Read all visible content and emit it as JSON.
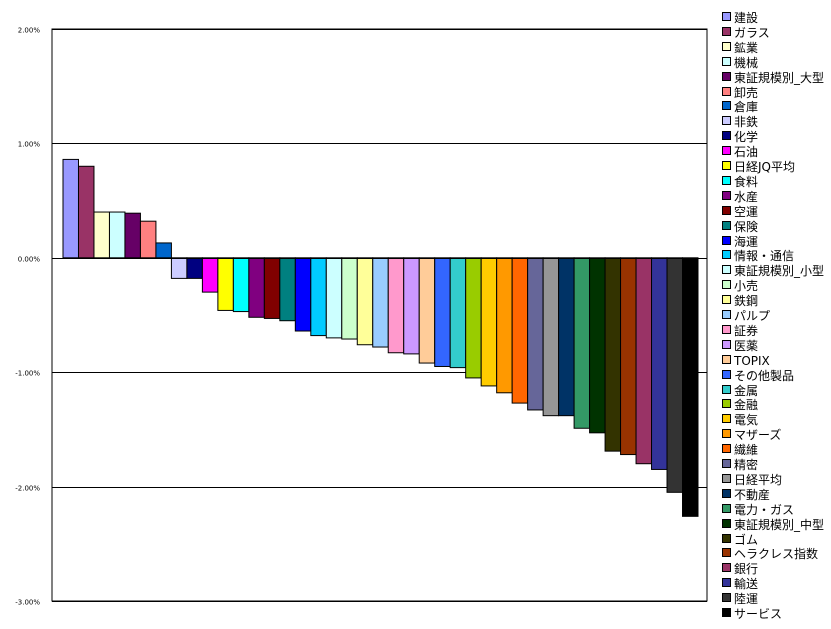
{
  "chart_data": {
    "type": "bar",
    "title": "",
    "xlabel": "",
    "ylabel": "",
    "ylim": [
      -3,
      2
    ],
    "yticks": [
      2,
      1,
      0,
      -1,
      -2,
      -3
    ],
    "ytick_labels": [
      "2.00%",
      "1.00%",
      "0.00%",
      "-1.00%",
      "-2.00%",
      "-3.00%"
    ],
    "grid": true,
    "legend_position": "right",
    "series": [
      {
        "name": "建設",
        "value": 0.86,
        "color": "#9999ff"
      },
      {
        "name": "ガラス",
        "value": 0.8,
        "color": "#993366"
      },
      {
        "name": "鉱業",
        "value": 0.4,
        "color": "#ffffcc"
      },
      {
        "name": "機械",
        "value": 0.4,
        "color": "#ccffff"
      },
      {
        "name": "東証規模別_大型",
        "value": 0.39,
        "color": "#660066"
      },
      {
        "name": "卸売",
        "value": 0.32,
        "color": "#ff8080"
      },
      {
        "name": "倉庫",
        "value": 0.13,
        "color": "#0066cc"
      },
      {
        "name": "非鉄",
        "value": -0.18,
        "color": "#ccccff"
      },
      {
        "name": "化学",
        "value": -0.18,
        "color": "#000080"
      },
      {
        "name": "石油",
        "value": -0.3,
        "color": "#ff00ff"
      },
      {
        "name": "日経JQ平均",
        "value": -0.46,
        "color": "#ffff00"
      },
      {
        "name": "食料",
        "value": -0.47,
        "color": "#00ffff"
      },
      {
        "name": "水産",
        "value": -0.52,
        "color": "#800080"
      },
      {
        "name": "空運",
        "value": -0.53,
        "color": "#800000"
      },
      {
        "name": "保険",
        "value": -0.55,
        "color": "#008080"
      },
      {
        "name": "海運",
        "value": -0.64,
        "color": "#0000ff"
      },
      {
        "name": "情報・通信",
        "value": -0.68,
        "color": "#00ccff"
      },
      {
        "name": "東証規模別_小型",
        "value": -0.7,
        "color": "#ccffff"
      },
      {
        "name": "小売",
        "value": -0.71,
        "color": "#ccffcc"
      },
      {
        "name": "鉄鋼",
        "value": -0.76,
        "color": "#ffff99"
      },
      {
        "name": "パルプ",
        "value": -0.78,
        "color": "#99ccff"
      },
      {
        "name": "証券",
        "value": -0.83,
        "color": "#ff99cc"
      },
      {
        "name": "医薬",
        "value": -0.84,
        "color": "#cc99ff"
      },
      {
        "name": "TOPIX",
        "value": -0.92,
        "color": "#ffcc99"
      },
      {
        "name": "その他製品",
        "value": -0.95,
        "color": "#3366ff"
      },
      {
        "name": "金属",
        "value": -0.96,
        "color": "#33cccc"
      },
      {
        "name": "金融",
        "value": -1.05,
        "color": "#99cc00"
      },
      {
        "name": "電気",
        "value": -1.12,
        "color": "#ffcc00"
      },
      {
        "name": "マザーズ",
        "value": -1.18,
        "color": "#ff9900"
      },
      {
        "name": "繊維",
        "value": -1.27,
        "color": "#ff6600"
      },
      {
        "name": "精密",
        "value": -1.33,
        "color": "#666699"
      },
      {
        "name": "日経平均",
        "value": -1.38,
        "color": "#969696"
      },
      {
        "name": "不動産",
        "value": -1.38,
        "color": "#003366"
      },
      {
        "name": "電力・ガス",
        "value": -1.49,
        "color": "#339966"
      },
      {
        "name": "東証規模別_中型",
        "value": -1.53,
        "color": "#003300"
      },
      {
        "name": "ゴム",
        "value": -1.69,
        "color": "#333300"
      },
      {
        "name": "ヘラクレス指数",
        "value": -1.72,
        "color": "#993300"
      },
      {
        "name": "銀行",
        "value": -1.8,
        "color": "#993366"
      },
      {
        "name": "輸送",
        "value": -1.85,
        "color": "#333399"
      },
      {
        "name": "陸運",
        "value": -2.05,
        "color": "#333333"
      },
      {
        "name": "サービス",
        "value": -2.26,
        "color": "#000000"
      }
    ]
  }
}
